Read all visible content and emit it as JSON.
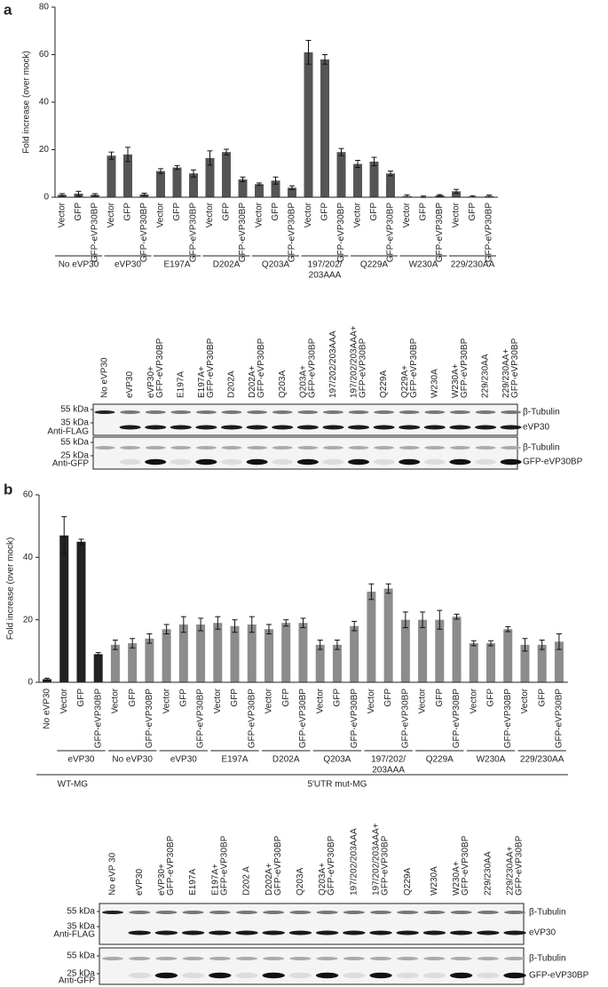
{
  "chart_data": [
    {
      "type": "bar",
      "panel": "a",
      "ylabel": "Fold increase (over mock)",
      "ylim": [
        0,
        80
      ],
      "yticks": [
        0,
        20,
        40,
        60,
        80
      ],
      "color": "#555555",
      "groups": [
        {
          "label": "No eVP30",
          "categories": [
            "Vector",
            "GFP",
            "GFP-eVP30BP"
          ],
          "values": [
            1,
            1.5,
            1
          ],
          "errors": [
            0.5,
            1,
            0.5
          ]
        },
        {
          "label": "eVP30",
          "categories": [
            "Vector",
            "GFP",
            "GFP-eVP30BP"
          ],
          "values": [
            17.5,
            18,
            1.2
          ],
          "errors": [
            1.5,
            3,
            0.5
          ]
        },
        {
          "label": "E197A",
          "categories": [
            "Vector",
            "GFP",
            "GFP-eVP30BP"
          ],
          "values": [
            11,
            12.5,
            10
          ],
          "errors": [
            1,
            0.8,
            1.5
          ]
        },
        {
          "label": "D202A",
          "categories": [
            "Vector",
            "GFP",
            "GFP-eVP30BP"
          ],
          "values": [
            16.5,
            19,
            7.5
          ],
          "errors": [
            3,
            1.2,
            1
          ]
        },
        {
          "label": "Q203A",
          "categories": [
            "Vector",
            "GFP",
            "GFP-eVP30BP"
          ],
          "values": [
            5.5,
            7,
            4
          ],
          "errors": [
            0.5,
            1.5,
            0.8
          ]
        },
        {
          "label": [
            "197/202/",
            "203AAA"
          ],
          "categories": [
            "Vector",
            "GFP",
            "GFP-eVP30BP"
          ],
          "values": [
            61,
            58,
            19
          ],
          "errors": [
            5,
            2,
            1.5
          ]
        },
        {
          "label": "Q229A",
          "categories": [
            "Vector",
            "GFP",
            "GFP-eVP30BP"
          ],
          "values": [
            14,
            15,
            10
          ],
          "errors": [
            1.5,
            1.8,
            1
          ]
        },
        {
          "label": "W230A",
          "categories": [
            "Vector",
            "GFP",
            "GFP-eVP30BP"
          ],
          "values": [
            0.5,
            0.2,
            0.8
          ],
          "errors": [
            0.5,
            0.3,
            0.3
          ]
        },
        {
          "label": "229/230AA",
          "categories": [
            "Vector",
            "GFP",
            "GFP-eVP30BP"
          ],
          "values": [
            2.5,
            0.3,
            0.5
          ],
          "errors": [
            0.8,
            0.3,
            0.4
          ]
        }
      ]
    },
    {
      "type": "bar",
      "panel": "b",
      "ylabel": "Fold increase (over mock)",
      "ylim": [
        0,
        60
      ],
      "yticks": [
        0,
        20,
        40,
        60
      ],
      "supergroups": [
        {
          "label": "WT-MG",
          "color": "#222222",
          "groups": [
            {
              "categories": [
                "No eVP30"
              ],
              "values": [
                1
              ],
              "errors": [
                0.3
              ]
            },
            {
              "label": "eVP30",
              "categories": [
                "Vector",
                "GFP",
                "GFP-eVP30BP"
              ],
              "values": [
                47,
                45,
                9
              ],
              "errors": [
                6,
                0.8,
                0.5
              ]
            }
          ]
        },
        {
          "label": "5′UTR mut-MG",
          "color": "#8c8c8c",
          "groups": [
            {
              "label": "No eVP30",
              "categories": [
                "Vector",
                "GFP",
                "GFP-eVP30BP"
              ],
              "values": [
                12,
                12.5,
                14
              ],
              "errors": [
                1.5,
                1.5,
                1.5
              ]
            },
            {
              "label": "eVP30",
              "categories": [
                "Vector",
                "GFP",
                "GFP-eVP30BP"
              ],
              "values": [
                17,
                18.5,
                18.5
              ],
              "errors": [
                1.5,
                2.5,
                2
              ]
            },
            {
              "label": "E197A",
              "categories": [
                "Vector",
                "GFP",
                "GFP-eVP30BP"
              ],
              "values": [
                19,
                18,
                18.5
              ],
              "errors": [
                2,
                2,
                2.5
              ]
            },
            {
              "label": "D202A",
              "categories": [
                "Vector",
                "GFP",
                "GFP-eVP30BP"
              ],
              "values": [
                17,
                19,
                19
              ],
              "errors": [
                1.5,
                1,
                1.5
              ]
            },
            {
              "label": "Q203A",
              "categories": [
                "Vector",
                "GFP",
                "GFP-eVP30BP"
              ],
              "values": [
                12,
                12,
                18
              ],
              "errors": [
                1.5,
                1.5,
                1.5
              ]
            },
            {
              "label": [
                "197/202/",
                "203AAA"
              ],
              "categories": [
                "Vector",
                "GFP",
                "GFP-eVP30BP"
              ],
              "values": [
                29,
                30,
                20
              ],
              "errors": [
                2.5,
                1.5,
                2.5
              ]
            },
            {
              "label": "Q229A",
              "categories": [
                "Vector",
                "GFP",
                "GFP-eVP30BP"
              ],
              "values": [
                20,
                20,
                21
              ],
              "errors": [
                2.5,
                3,
                0.8
              ]
            },
            {
              "label": "W230A",
              "categories": [
                "Vector",
                "GFP",
                "GFP-eVP30BP"
              ],
              "values": [
                12.5,
                12.5,
                17
              ],
              "errors": [
                0.8,
                0.8,
                0.8
              ]
            },
            {
              "label": "229/230AA",
              "categories": [
                "Vector",
                "GFP",
                "GFP-eVP30BP"
              ],
              "values": [
                12,
                12,
                13
              ],
              "errors": [
                2,
                1.5,
                2.5
              ]
            }
          ]
        }
      ]
    }
  ],
  "blots": [
    {
      "lanes": [
        "No eVP30",
        "eVP30",
        [
          "eVP30+",
          "GFP-eVP30BP"
        ],
        "E197A",
        [
          "E197A+",
          "GFP-eVP30BP"
        ],
        "D202A",
        [
          "D202A+",
          "GFP-eVP30BP"
        ],
        "Q203A",
        [
          "Q203A+",
          "GFP-eVP30BP"
        ],
        "197/202/203AAA",
        [
          "197/202/203AAA+",
          "GFP-eVP30BP"
        ],
        "Q229A",
        [
          "Q229A+",
          "GFP-eVP30BP"
        ],
        "W230A",
        [
          "W230A+",
          "GFP-eVP30BP"
        ],
        "229/230AA",
        [
          "229/230AA+",
          "GFP-eVP30BP"
        ]
      ],
      "panels": [
        {
          "markers": [
            "55 kDa",
            "35 kDa"
          ],
          "antibody": "Anti-FLAG",
          "bands": [
            "β-Tubulin",
            "eVP30"
          ]
        },
        {
          "markers": [
            "55 kDa",
            "25 kDa"
          ],
          "antibody": "Anti-GFP",
          "bands": [
            "β-Tubulin",
            "GFP-eVP30BP"
          ]
        }
      ]
    },
    {
      "lanes": [
        "No eVP 30",
        "eVP30",
        [
          "eVP30+",
          "GFP-eVP30BP"
        ],
        "E197A",
        [
          "E197A+",
          "GFP-eVP30BP"
        ],
        "D202 A",
        [
          "D202A+",
          "GFP-eVP30BP"
        ],
        "Q203A",
        [
          "Q203A+",
          "GFP-eVP30BP"
        ],
        "197/202/203AAA",
        [
          "197/202/203AAA+",
          "GFP-eVP30BP"
        ],
        "Q229A",
        "W230A",
        [
          "W230A+",
          "GFP-eVP30BP"
        ],
        "229/230AA",
        [
          "229/230AA+",
          "GFP-eVP30BP"
        ]
      ],
      "panels": [
        {
          "markers": [
            "55 kDa",
            "35 kDa"
          ],
          "antibody": "Anti-FLAG",
          "bands": [
            "β-Tubulin",
            "eVP30"
          ]
        },
        {
          "markers": [
            "55 kDa",
            "25 kDa"
          ],
          "antibody": "Anti-GFP",
          "bands": [
            "β-Tubulin",
            "GFP-eVP30BP"
          ]
        }
      ]
    }
  ]
}
